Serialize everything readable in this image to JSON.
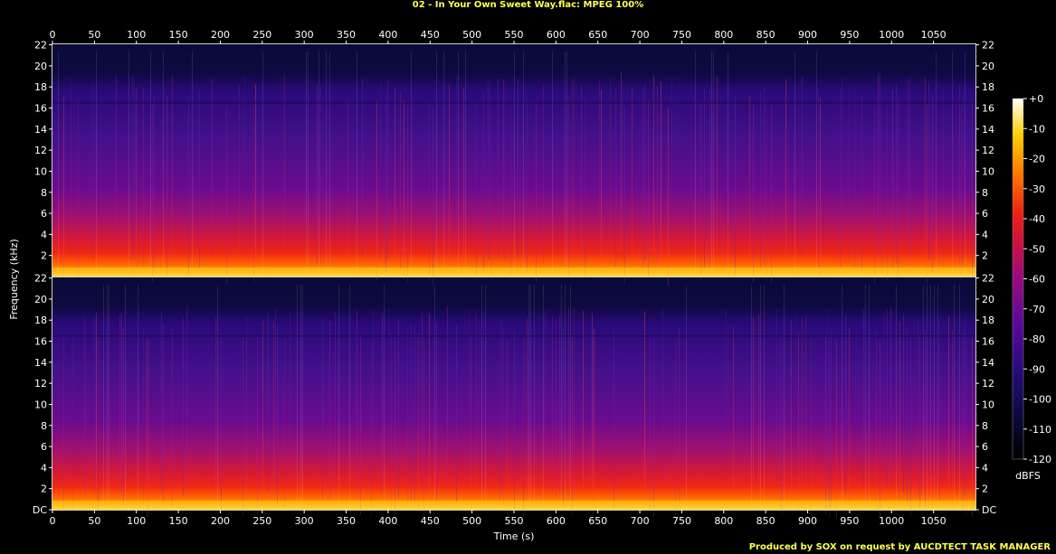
{
  "title": "02 - In Your Own Sweet Way.flac: MPEG 100%",
  "footer": "Produced by SOX on request by AUCDTECT TASK MANAGER",
  "chart_data": {
    "type": "heatmap",
    "xlabel": "Time (s)",
    "ylabel": "Frequency (kHz)",
    "colorbar_label": "dBFS",
    "xlim": [
      0,
      1100
    ],
    "x_ticks": [
      0,
      50,
      100,
      150,
      200,
      250,
      300,
      350,
      400,
      450,
      500,
      550,
      600,
      650,
      700,
      750,
      800,
      850,
      900,
      950,
      1000,
      1050
    ],
    "ylim": [
      0,
      22.05
    ],
    "y_ticks": [
      0,
      2,
      4,
      6,
      8,
      10,
      12,
      14,
      16,
      18,
      20,
      22
    ],
    "y_tick_labels": [
      "DC",
      "2",
      "4",
      "6",
      "8",
      "10",
      "12",
      "14",
      "16",
      "18",
      "20",
      "22"
    ],
    "channels": 2,
    "colorbar_range": [
      -120,
      0
    ],
    "colorbar_ticks": [
      "+0",
      "-10",
      "-20",
      "-30",
      "-40",
      "-50",
      "-60",
      "-70",
      "-80",
      "-90",
      "-100",
      "-110",
      "-120"
    ],
    "lowpass_cutoff_khz": 16.5,
    "colors": [
      "#000000",
      "#0a0a40",
      "#3a0a8a",
      "#7a0a9a",
      "#c0104a",
      "#f02010",
      "#ff7000",
      "#ffd000",
      "#ffffff"
    ]
  }
}
